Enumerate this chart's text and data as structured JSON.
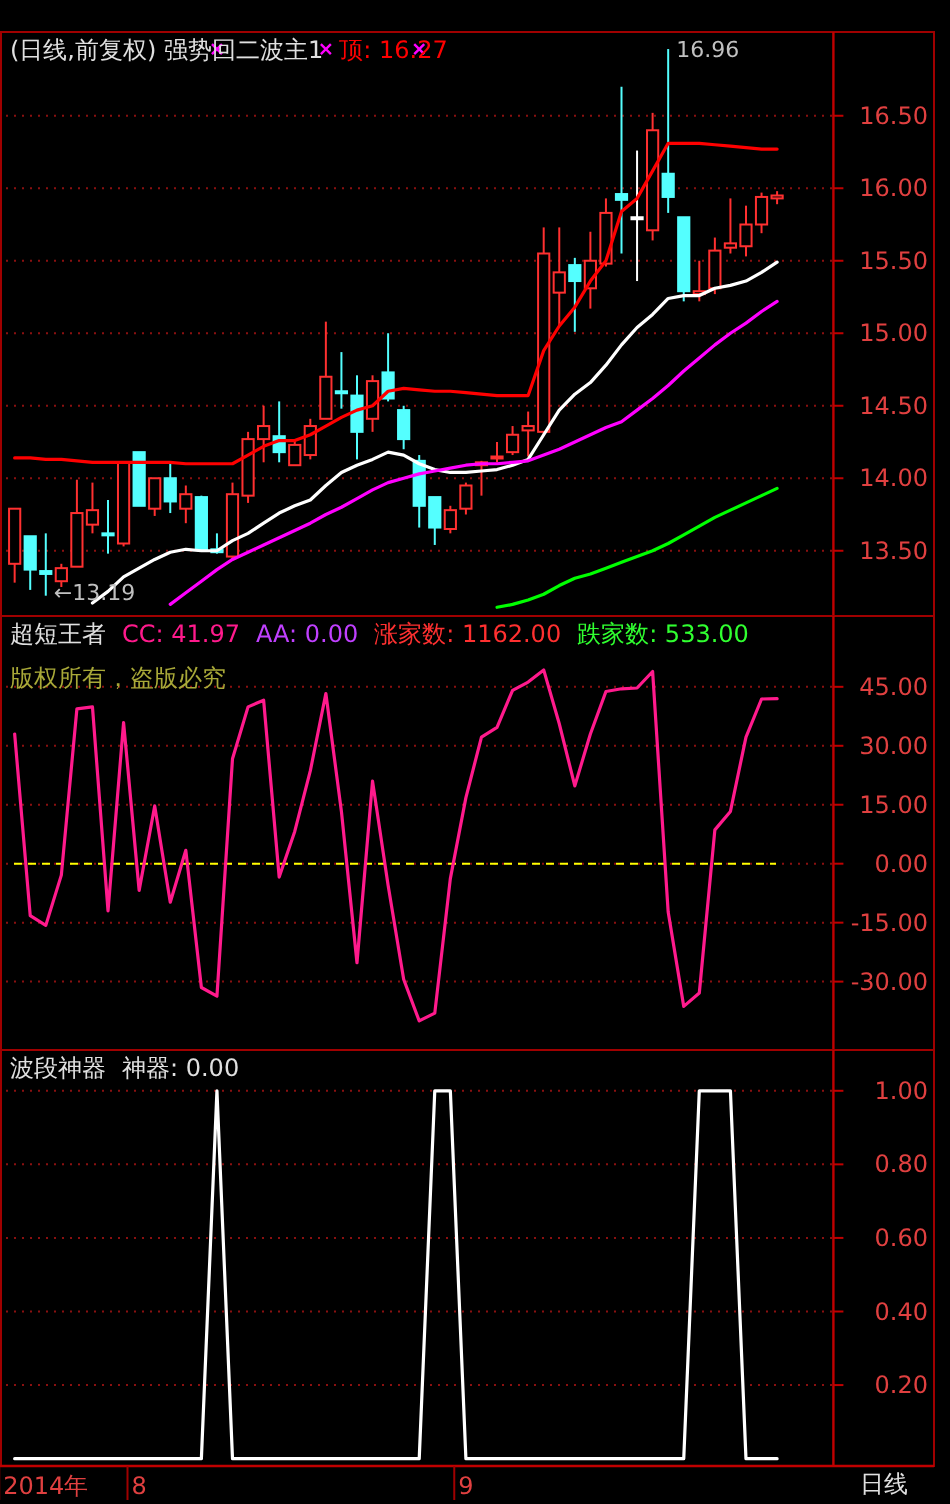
{
  "chart_data": [
    {
      "type": "candlestick",
      "title": "(日线,前复权) 强势回二波主1",
      "tick_labels": "y",
      "grid": "y",
      "categories": [
        null,
        null,
        null,
        null,
        null,
        null,
        null,
        null,
        null,
        null,
        null,
        null,
        null,
        null,
        null,
        null,
        null,
        null,
        null,
        null,
        null,
        null,
        null,
        null,
        null,
        null,
        null,
        null,
        null,
        null,
        null,
        null,
        null,
        null,
        null,
        null,
        null,
        null,
        null,
        null,
        null,
        null,
        null,
        null,
        null,
        null,
        null,
        null,
        null,
        null
      ],
      "ylim": [
        13.05,
        17.05
      ],
      "yticks": [
        {
          "value": 13.5,
          "label": "13.50"
        },
        {
          "value": 14,
          "label": "14.00"
        },
        {
          "value": 14.5,
          "label": "14.50"
        },
        {
          "value": 15,
          "label": "15.00"
        },
        {
          "value": 15.5,
          "label": "15.50"
        },
        {
          "value": 16,
          "label": "16.00"
        },
        {
          "value": 16.5,
          "label": "16.50"
        }
      ],
      "ohlc": [
        [
          13.41,
          13.79,
          13.28,
          13.79
        ],
        [
          13.6,
          13.6,
          13.23,
          13.37
        ],
        [
          13.36,
          13.62,
          13.19,
          13.34
        ],
        [
          13.29,
          13.41,
          13.25,
          13.38
        ],
        [
          13.39,
          13.99,
          13.39,
          13.76
        ],
        [
          13.68,
          13.97,
          13.62,
          13.78
        ],
        [
          13.62,
          13.85,
          13.48,
          13.61
        ],
        [
          13.55,
          14.11,
          13.53,
          14.11
        ],
        [
          14.18,
          14.18,
          13.81,
          13.81
        ],
        [
          13.79,
          14.0,
          13.74,
          14.0
        ],
        [
          14.0,
          14.11,
          13.76,
          13.84
        ],
        [
          13.79,
          13.95,
          13.69,
          13.89
        ],
        [
          13.87,
          13.88,
          13.5,
          13.51
        ],
        [
          13.51,
          13.62,
          13.48,
          13.49
        ],
        [
          13.46,
          13.97,
          13.44,
          13.89
        ],
        [
          13.88,
          14.32,
          13.83,
          14.27
        ],
        [
          14.27,
          14.5,
          14.11,
          14.36
        ],
        [
          14.29,
          14.53,
          14.11,
          14.18
        ],
        [
          14.09,
          14.27,
          14.09,
          14.23
        ],
        [
          14.16,
          14.41,
          14.13,
          14.36
        ],
        [
          14.41,
          15.08,
          14.41,
          14.7
        ],
        [
          14.6,
          14.87,
          14.48,
          14.59
        ],
        [
          14.57,
          14.71,
          14.13,
          14.32
        ],
        [
          14.41,
          14.71,
          14.32,
          14.67
        ],
        [
          14.73,
          15.0,
          14.53,
          14.55
        ],
        [
          14.47,
          14.5,
          14.2,
          14.27
        ],
        [
          14.12,
          14.16,
          13.66,
          13.81
        ],
        [
          13.87,
          13.87,
          13.54,
          13.66
        ],
        [
          13.65,
          13.81,
          13.62,
          13.78
        ],
        [
          13.79,
          13.97,
          13.75,
          13.95
        ],
        [
          14.09,
          14.12,
          13.88,
          14.11
        ],
        [
          14.14,
          14.25,
          14.11,
          14.15
        ],
        [
          14.18,
          14.36,
          14.16,
          14.3
        ],
        [
          14.33,
          14.46,
          14.15,
          14.36
        ],
        [
          14.32,
          15.73,
          14.3,
          15.55
        ],
        [
          15.28,
          15.73,
          15.05,
          15.42
        ],
        [
          15.47,
          15.52,
          15.01,
          15.36
        ],
        [
          15.31,
          15.7,
          15.17,
          15.5
        ],
        [
          15.48,
          15.93,
          15.46,
          15.83
        ],
        [
          15.96,
          16.7,
          15.55,
          15.92
        ],
        [
          15.8,
          16.26,
          15.36,
          15.8
        ],
        [
          15.71,
          16.52,
          15.64,
          16.4
        ],
        [
          16.1,
          16.96,
          15.83,
          15.94
        ],
        [
          15.8,
          15.8,
          15.22,
          15.29
        ],
        [
          15.27,
          15.5,
          15.22,
          15.29
        ],
        [
          15.31,
          15.66,
          15.27,
          15.57
        ],
        [
          15.59,
          15.93,
          15.55,
          15.62
        ],
        [
          15.6,
          15.88,
          15.53,
          15.75
        ],
        [
          15.75,
          15.97,
          15.69,
          15.94
        ],
        [
          15.93,
          15.98,
          15.89,
          15.95
        ]
      ],
      "colors": [
        "#ff3030",
        "#54ffff",
        "#54ffff",
        "#ff3030",
        "#ff3030",
        "#ff3030",
        "#54ffff",
        "#ff3030",
        "#54ffff",
        "#ff3030",
        "#54ffff",
        "#ff3030",
        "#54ffff",
        "#54ffff",
        "#ff3030",
        "#ff3030",
        "#ff3030",
        "#54ffff",
        "#ff3030",
        "#ff3030",
        "#ff3030",
        "#54ffff",
        "#54ffff",
        "#ff3030",
        "#54ffff",
        "#54ffff",
        "#54ffff",
        "#54ffff",
        "#ff3030",
        "#ff3030",
        "#ff3030",
        "#ff3030",
        "#ff3030",
        "#ff3030",
        "#ff3030",
        "#ff3030",
        "#54ffff",
        "#ff3030",
        "#ff3030",
        "#54ffff",
        "#ffffff",
        "#ff3030",
        "#54ffff",
        "#54ffff",
        "#ff3030",
        "#ff3030",
        "#ff3030",
        "#ff3030",
        "#ff3030",
        "#ff3030"
      ],
      "series": [
        {
          "type": "line",
          "name": "顶: 16.27",
          "color": "#ff0000",
          "values": [
            14.14,
            14.14,
            14.13,
            14.13,
            14.12,
            14.11,
            14.11,
            14.11,
            14.11,
            14.11,
            14.11,
            14.1,
            14.1,
            14.1,
            14.1,
            14.16,
            14.22,
            14.26,
            14.26,
            14.3,
            14.36,
            14.42,
            14.47,
            14.5,
            14.6,
            14.62,
            14.61,
            14.6,
            14.6,
            14.59,
            14.58,
            14.57,
            14.57,
            14.57,
            14.88,
            15.05,
            15.18,
            15.36,
            15.5,
            15.84,
            15.93,
            16.12,
            16.31,
            16.31,
            16.31,
            16.3,
            16.29,
            16.28,
            16.27,
            16.27
          ]
        },
        {
          "type": "line",
          "color": "#ffffff",
          "values": [
            null,
            null,
            null,
            null,
            null,
            13.14,
            13.22,
            13.32,
            13.38,
            13.44,
            13.49,
            13.51,
            13.5,
            13.5,
            13.57,
            13.62,
            13.69,
            13.76,
            13.81,
            13.85,
            13.95,
            14.04,
            14.09,
            14.13,
            14.18,
            14.16,
            14.1,
            14.06,
            14.04,
            14.04,
            14.05,
            14.06,
            14.09,
            14.13,
            14.3,
            14.47,
            14.58,
            14.66,
            14.78,
            14.92,
            15.04,
            15.13,
            15.24,
            15.26,
            15.26,
            15.31,
            15.33,
            15.36,
            15.42,
            15.49
          ]
        },
        {
          "type": "line",
          "color": "#ff00ff",
          "values": [
            null,
            null,
            null,
            null,
            null,
            null,
            null,
            null,
            null,
            null,
            13.13,
            13.21,
            13.29,
            13.37,
            13.44,
            13.49,
            13.54,
            13.59,
            13.64,
            13.69,
            13.75,
            13.8,
            13.86,
            13.92,
            13.97,
            14.0,
            14.03,
            14.05,
            14.07,
            14.09,
            14.1,
            14.1,
            14.11,
            14.12,
            14.16,
            14.2,
            14.25,
            14.3,
            14.35,
            14.39,
            14.47,
            14.55,
            14.64,
            14.74,
            14.83,
            14.92,
            15.0,
            15.07,
            15.15,
            15.22
          ]
        },
        {
          "type": "line",
          "color": "#00ff00",
          "values": [
            null,
            null,
            null,
            null,
            null,
            null,
            null,
            null,
            null,
            null,
            null,
            null,
            null,
            null,
            null,
            null,
            null,
            null,
            null,
            null,
            null,
            null,
            null,
            null,
            null,
            null,
            null,
            null,
            null,
            null,
            null,
            13.11,
            13.13,
            13.16,
            13.2,
            13.26,
            13.31,
            13.34,
            13.38,
            13.42,
            13.46,
            13.5,
            13.55,
            13.61,
            13.67,
            13.73,
            13.78,
            13.83,
            13.88,
            13.93
          ]
        },
        {
          "type": "scatter",
          "marker": "cross",
          "color": "#ff00ff",
          "values": [
            null,
            null,
            null,
            null,
            null,
            null,
            null,
            null,
            null,
            null,
            null,
            null,
            null,
            16.96,
            null,
            null,
            null,
            null,
            null,
            null,
            16.96,
            null,
            null,
            null,
            null,
            null,
            16.96,
            null,
            null,
            null,
            null,
            null,
            null,
            null,
            null,
            null,
            null,
            null,
            null,
            null,
            null,
            null,
            null,
            null,
            null,
            null,
            null,
            null,
            null,
            null
          ]
        }
      ],
      "annotations": [
        "16.96",
        "←13.19"
      ]
    },
    {
      "type": "line",
      "title": "超短王者",
      "subtitle": "版权所有，盗版必究",
      "tick_labels": "y",
      "grid": "y",
      "categories": [
        null,
        null,
        null,
        null,
        null,
        null,
        null,
        null,
        null,
        null,
        null,
        null,
        null,
        null,
        null,
        null,
        null,
        null,
        null,
        null,
        null,
        null,
        null,
        null,
        null,
        null,
        null,
        null,
        null,
        null,
        null,
        null,
        null,
        null,
        null,
        null,
        null,
        null,
        null,
        null,
        null,
        null,
        null,
        null,
        null,
        null,
        null,
        null,
        null,
        null
      ],
      "ylim": [
        -47.4,
        62
      ],
      "yticks": [
        {
          "value": -30,
          "label": "-30.00"
        },
        {
          "value": -15,
          "label": "-15.00"
        },
        {
          "value": 0,
          "label": "0.00"
        },
        {
          "value": 15,
          "label": "15.00"
        },
        {
          "value": 30,
          "label": "30.00"
        },
        {
          "value": 45,
          "label": "45.00"
        }
      ],
      "series": [
        {
          "name": "CC: 41.97",
          "color": "#ff1a8c",
          "values": [
            33.0,
            -13.2,
            -15.7,
            -2.9,
            39.4,
            39.9,
            -12.0,
            35.9,
            -6.8,
            14.7,
            -9.8,
            3.4,
            -31.5,
            -33.7,
            26.7,
            39.9,
            41.6,
            -3.4,
            8.2,
            23.6,
            43.3,
            13.3,
            -25.2,
            21.0,
            -5.5,
            -29.4,
            -40.0,
            -38.0,
            -3.8,
            16.8,
            32.2,
            34.7,
            44.1,
            46.2,
            49.3,
            35.6,
            19.8,
            33.0,
            43.8,
            44.5,
            44.7,
            48.9,
            -12.3,
            -36.3,
            -32.9,
            8.6,
            13.3,
            32.2,
            41.9,
            42.0
          ]
        }
      ],
      "ref_lines": [
        {
          "axis": "y",
          "value": 0,
          "color": "#ffff00",
          "line_style": "dashed"
        }
      ],
      "annotations": [
        "AA: 0.00",
        "涨家数: 1162.00",
        "跌家数: 533.00"
      ]
    },
    {
      "type": "line",
      "title": "波段神器",
      "grid": "y",
      "categories": [
        null,
        null,
        "2014年",
        null,
        null,
        null,
        null,
        null,
        "8",
        null,
        null,
        null,
        null,
        null,
        null,
        null,
        null,
        null,
        null,
        null,
        null,
        null,
        null,
        null,
        null,
        null,
        null,
        null,
        null,
        "9",
        null,
        null,
        null,
        null,
        null,
        null,
        null,
        null,
        null,
        null,
        null,
        null,
        null,
        null,
        null,
        null,
        null,
        null,
        null,
        null
      ],
      "ylim": [
        -0.02,
        1.1
      ],
      "yticks": [
        {
          "value": 0.2,
          "label": "0.20"
        },
        {
          "value": 0.4,
          "label": "0.40"
        },
        {
          "value": 0.6,
          "label": "0.60"
        },
        {
          "value": 0.8,
          "label": "0.80"
        },
        {
          "value": 1,
          "label": "1.00"
        }
      ],
      "series": [
        {
          "name": "神器: 0.00",
          "color": "#ffffff",
          "values": [
            0,
            0,
            0,
            0,
            0,
            0,
            0,
            0,
            0,
            0,
            0,
            0,
            0,
            1,
            0,
            0,
            0,
            0,
            0,
            0,
            0,
            0,
            0,
            0,
            0,
            0,
            0,
            1,
            1,
            0,
            0,
            0,
            0,
            0,
            0,
            0,
            0,
            0,
            0,
            0,
            0,
            0,
            0,
            0,
            1,
            1,
            1,
            0,
            0,
            0
          ]
        }
      ],
      "annotations": [
        "日线"
      ]
    }
  ]
}
